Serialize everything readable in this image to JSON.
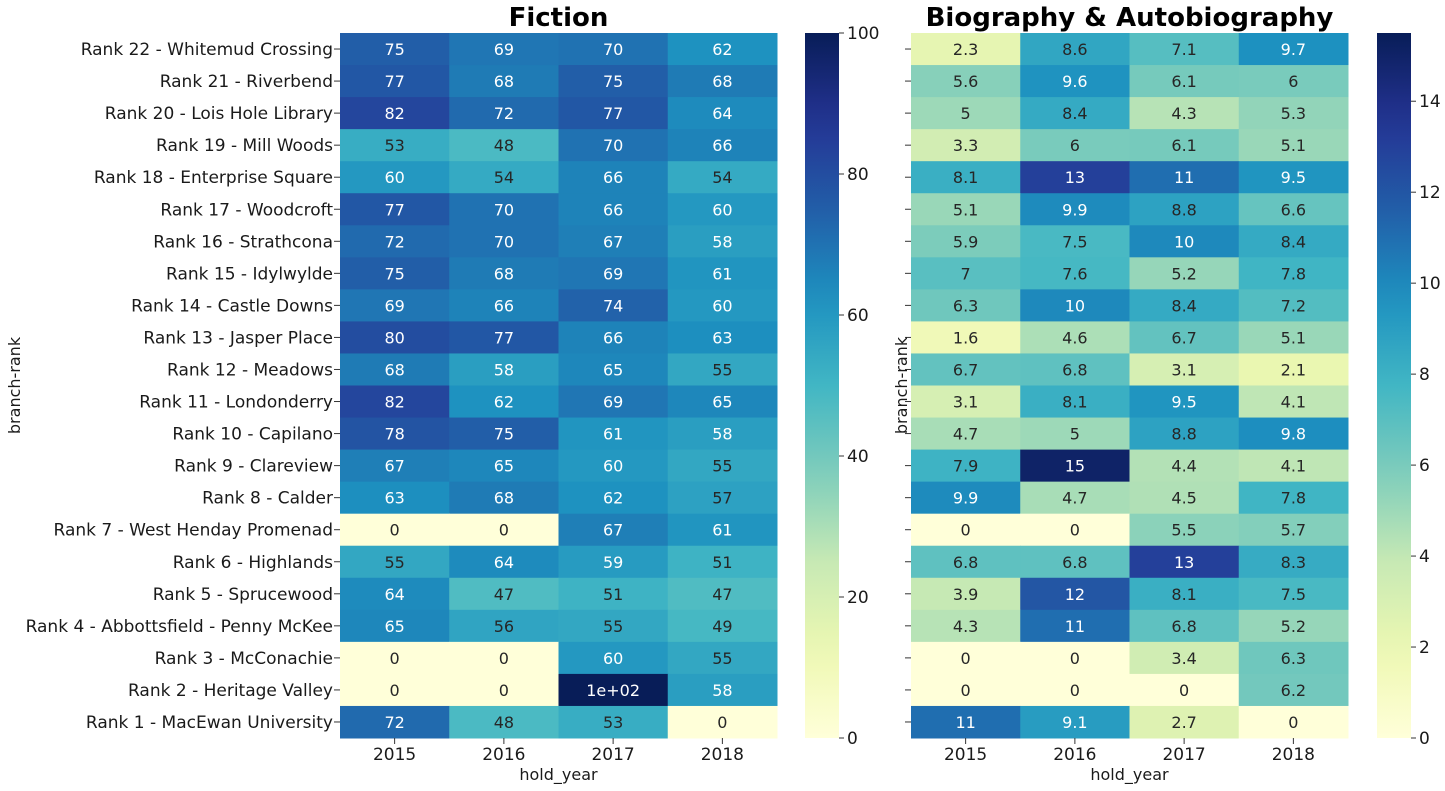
{
  "chart_data": [
    {
      "type": "heatmap",
      "title": "Fiction",
      "xlabel": "hold_year",
      "ylabel": "branch-rank",
      "x": [
        "2015",
        "2016",
        "2017",
        "2018"
      ],
      "y": [
        "Rank 22 - Whitemud Crossing",
        "Rank 21 - Riverbend",
        "Rank 20 - Lois Hole Library",
        "Rank 19 - Mill Woods",
        "Rank 18 - Enterprise Square",
        "Rank 17 - Woodcroft",
        "Rank 16 - Strathcona",
        "Rank 15 - Idylwylde",
        "Rank 14 - Castle Downs",
        "Rank 13 - Jasper Place",
        "Rank 12 - Meadows",
        "Rank 11 - Londonderry",
        "Rank 10 - Capilano",
        "Rank 9 - Clareview",
        "Rank 8 - Calder",
        "Rank 7 - West Henday Promenad",
        "Rank 6 - Highlands",
        "Rank 5 - Sprucewood",
        "Rank 4 - Abbottsfield - Penny McKee",
        "Rank 3 - McConachie",
        "Rank 2 - Heritage Valley",
        "Rank 1 - MacEwan University"
      ],
      "values": [
        [
          75,
          69,
          70,
          62
        ],
        [
          77,
          68,
          75,
          68
        ],
        [
          82,
          72,
          77,
          64
        ],
        [
          53,
          48,
          70,
          66
        ],
        [
          60,
          54,
          66,
          54
        ],
        [
          77,
          70,
          66,
          60
        ],
        [
          72,
          70,
          67,
          58
        ],
        [
          75,
          68,
          69,
          61
        ],
        [
          69,
          66,
          74,
          60
        ],
        [
          80,
          77,
          66,
          63
        ],
        [
          68,
          58,
          65,
          55
        ],
        [
          82,
          62,
          69,
          65
        ],
        [
          78,
          75,
          61,
          58
        ],
        [
          67,
          65,
          60,
          55
        ],
        [
          63,
          68,
          62,
          57
        ],
        [
          0,
          0,
          67,
          61
        ],
        [
          55,
          64,
          59,
          51
        ],
        [
          64,
          47,
          51,
          47
        ],
        [
          65,
          56,
          55,
          49
        ],
        [
          0,
          0,
          60,
          55
        ],
        [
          0,
          0,
          100,
          58
        ],
        [
          72,
          48,
          53,
          0
        ]
      ],
      "labels": [
        [
          "75",
          "69",
          "70",
          "62"
        ],
        [
          "77",
          "68",
          "75",
          "68"
        ],
        [
          "82",
          "72",
          "77",
          "64"
        ],
        [
          "53",
          "48",
          "70",
          "66"
        ],
        [
          "60",
          "54",
          "66",
          "54"
        ],
        [
          "77",
          "70",
          "66",
          "60"
        ],
        [
          "72",
          "70",
          "67",
          "58"
        ],
        [
          "75",
          "68",
          "69",
          "61"
        ],
        [
          "69",
          "66",
          "74",
          "60"
        ],
        [
          "80",
          "77",
          "66",
          "63"
        ],
        [
          "68",
          "58",
          "65",
          "55"
        ],
        [
          "82",
          "62",
          "69",
          "65"
        ],
        [
          "78",
          "75",
          "61",
          "58"
        ],
        [
          "67",
          "65",
          "60",
          "55"
        ],
        [
          "63",
          "68",
          "62",
          "57"
        ],
        [
          "0",
          "0",
          "67",
          "61"
        ],
        [
          "55",
          "64",
          "59",
          "51"
        ],
        [
          "64",
          "47",
          "51",
          "47"
        ],
        [
          "65",
          "56",
          "55",
          "49"
        ],
        [
          "0",
          "0",
          "60",
          "55"
        ],
        [
          "0",
          "0",
          "1e+02",
          "58"
        ],
        [
          "72",
          "48",
          "53",
          "0"
        ]
      ],
      "colorbar": {
        "min": 0,
        "max": 100,
        "ticks": [
          0,
          20,
          40,
          60,
          80,
          100
        ]
      },
      "colormap": "YlGnBu"
    },
    {
      "type": "heatmap",
      "title": "Biography & Autobiography",
      "xlabel": "hold_year",
      "ylabel": "branch-rank",
      "x": [
        "2015",
        "2016",
        "2017",
        "2018"
      ],
      "values": [
        [
          2.3,
          8.6,
          7.1,
          9.7
        ],
        [
          5.6,
          9.6,
          6.1,
          6
        ],
        [
          5,
          8.4,
          4.3,
          5.3
        ],
        [
          3.3,
          6,
          6.1,
          5.1
        ],
        [
          8.1,
          13,
          11,
          9.5
        ],
        [
          5.1,
          9.9,
          8.8,
          6.6
        ],
        [
          5.9,
          7.5,
          10,
          8.4
        ],
        [
          7,
          7.6,
          5.2,
          7.8
        ],
        [
          6.3,
          10,
          8.4,
          7.2
        ],
        [
          1.6,
          4.6,
          6.7,
          5.1
        ],
        [
          6.7,
          6.8,
          3.1,
          2.1
        ],
        [
          3.1,
          8.1,
          9.5,
          4.1
        ],
        [
          4.7,
          5,
          8.8,
          9.8
        ],
        [
          7.9,
          15,
          4.4,
          4.1
        ],
        [
          9.9,
          4.7,
          4.5,
          7.8
        ],
        [
          0,
          0,
          5.5,
          5.7
        ],
        [
          6.8,
          6.8,
          13,
          8.3
        ],
        [
          3.9,
          12,
          8.1,
          7.5
        ],
        [
          4.3,
          11,
          6.8,
          5.2
        ],
        [
          0,
          0,
          3.4,
          6.3
        ],
        [
          0,
          0,
          0,
          6.2
        ],
        [
          11,
          9.1,
          2.7,
          0
        ]
      ],
      "labels": [
        [
          "2.3",
          "8.6",
          "7.1",
          "9.7"
        ],
        [
          "5.6",
          "9.6",
          "6.1",
          "6"
        ],
        [
          "5",
          "8.4",
          "4.3",
          "5.3"
        ],
        [
          "3.3",
          "6",
          "6.1",
          "5.1"
        ],
        [
          "8.1",
          "13",
          "11",
          "9.5"
        ],
        [
          "5.1",
          "9.9",
          "8.8",
          "6.6"
        ],
        [
          "5.9",
          "7.5",
          "10",
          "8.4"
        ],
        [
          "7",
          "7.6",
          "5.2",
          "7.8"
        ],
        [
          "6.3",
          "10",
          "8.4",
          "7.2"
        ],
        [
          "1.6",
          "4.6",
          "6.7",
          "5.1"
        ],
        [
          "6.7",
          "6.8",
          "3.1",
          "2.1"
        ],
        [
          "3.1",
          "8.1",
          "9.5",
          "4.1"
        ],
        [
          "4.7",
          "5",
          "8.8",
          "9.8"
        ],
        [
          "7.9",
          "15",
          "4.4",
          "4.1"
        ],
        [
          "9.9",
          "4.7",
          "4.5",
          "7.8"
        ],
        [
          "0",
          "0",
          "5.5",
          "5.7"
        ],
        [
          "6.8",
          "6.8",
          "13",
          "8.3"
        ],
        [
          "3.9",
          "12",
          "8.1",
          "7.5"
        ],
        [
          "4.3",
          "11",
          "6.8",
          "5.2"
        ],
        [
          "0",
          "0",
          "3.4",
          "6.3"
        ],
        [
          "0",
          "0",
          "0",
          "6.2"
        ],
        [
          "11",
          "9.1",
          "2.7",
          "0"
        ]
      ],
      "colorbar": {
        "min": 0,
        "max": 15.5,
        "ticks": [
          0,
          2,
          4,
          6,
          8,
          10,
          12,
          14
        ]
      },
      "colormap": "YlGnBu"
    }
  ]
}
